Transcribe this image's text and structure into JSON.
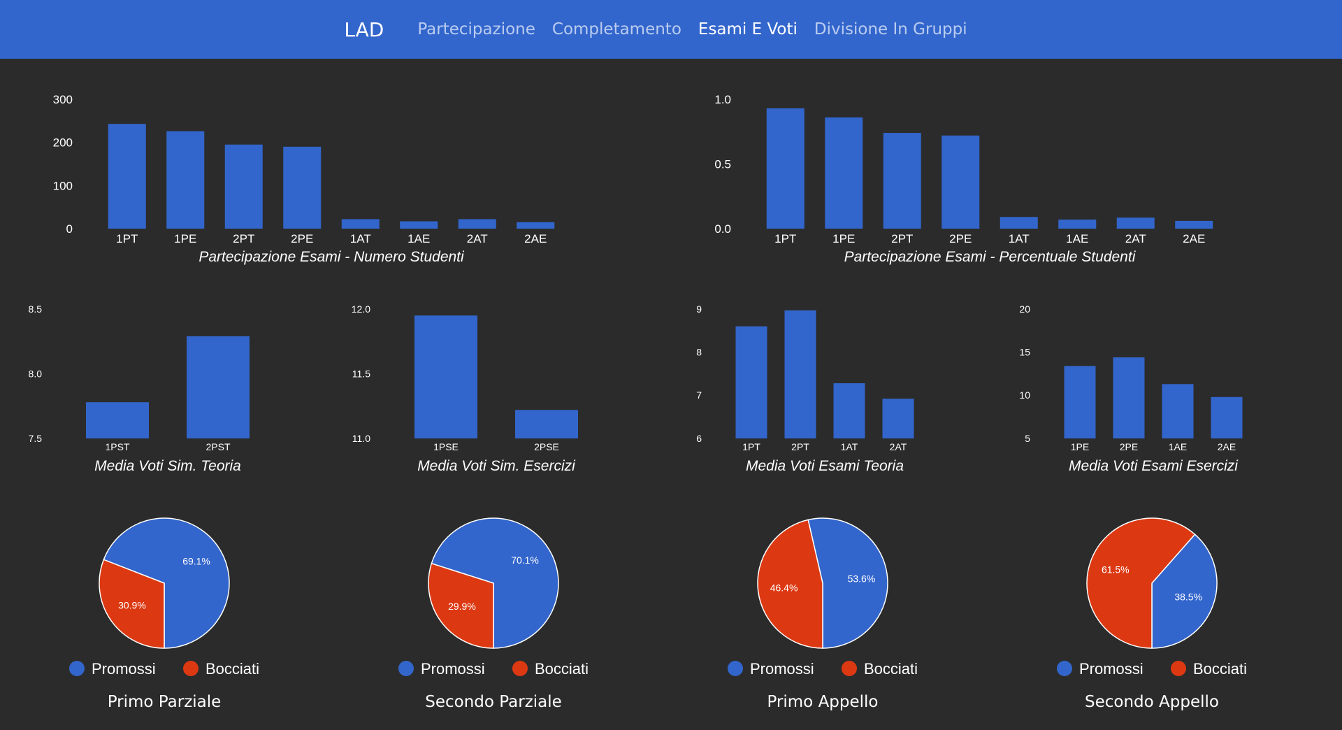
{
  "navbar": {
    "brand": "LAD",
    "links": [
      {
        "label": "Partecipazione",
        "active": false
      },
      {
        "label": "Completamento",
        "active": false
      },
      {
        "label": "Esami E Voti",
        "active": true
      },
      {
        "label": "Divisione In Gruppi",
        "active": false
      }
    ]
  },
  "colors": {
    "navbar_bg": "#3366cc",
    "page_bg": "#2b2b2b",
    "bar": "#3366cc",
    "promossi": "#3366cc",
    "bocciati": "#dc3912",
    "text": "#ffffff"
  },
  "chart_data": [
    {
      "id": "partecipazione-numero",
      "type": "bar",
      "title": "Partecipazione Esami - Numero Studenti",
      "categories": [
        "1PT",
        "1PE",
        "2PT",
        "2PE",
        "1AT",
        "1AE",
        "2AT",
        "2AE"
      ],
      "values": [
        243,
        226,
        195,
        190,
        22,
        17,
        22,
        15
      ],
      "ylim": [
        0,
        300
      ],
      "yticks": [
        "0",
        "100",
        "200",
        "300"
      ],
      "grid": false
    },
    {
      "id": "partecipazione-percentuale",
      "type": "bar",
      "title": "Partecipazione Esami - Percentuale Studenti",
      "categories": [
        "1PT",
        "1PE",
        "2PT",
        "2PE",
        "1AT",
        "1AE",
        "2AT",
        "2AE"
      ],
      "values": [
        0.93,
        0.86,
        0.74,
        0.72,
        0.09,
        0.07,
        0.085,
        0.06
      ],
      "ylim": [
        0,
        1
      ],
      "yticks": [
        "0.0",
        "0.5",
        "1.0"
      ],
      "grid": false
    },
    {
      "id": "media-sim-teoria",
      "type": "bar",
      "title": "Media Voti Sim. Teoria",
      "categories": [
        "1PST",
        "2PST"
      ],
      "values": [
        7.78,
        8.29
      ],
      "ylim": [
        7.5,
        8.5
      ],
      "yticks": [
        "7.5",
        "8.0",
        "8.5"
      ],
      "grid": false
    },
    {
      "id": "media-sim-esercizi",
      "type": "bar",
      "title": "Media Voti Sim. Esercizi",
      "categories": [
        "1PSE",
        "2PSE"
      ],
      "values": [
        11.95,
        11.22
      ],
      "ylim": [
        11.0,
        12.0
      ],
      "yticks": [
        "11.0",
        "11.5",
        "12.0"
      ],
      "grid": false
    },
    {
      "id": "media-esami-teoria",
      "type": "bar",
      "title": "Media Voti Esami Teoria",
      "categories": [
        "1PT",
        "2PT",
        "1AT",
        "2AT"
      ],
      "values": [
        8.6,
        8.97,
        7.28,
        6.92
      ],
      "ylim": [
        6,
        9
      ],
      "yticks": [
        "6",
        "7",
        "8",
        "9"
      ],
      "grid": false
    },
    {
      "id": "media-esami-esercizi",
      "type": "bar",
      "title": "Media Voti Esami Esercizi",
      "categories": [
        "1PE",
        "2PE",
        "1AE",
        "2AE"
      ],
      "values": [
        13.4,
        14.4,
        11.3,
        9.8
      ],
      "ylim": [
        5,
        20
      ],
      "yticks": [
        "5",
        "10",
        "15",
        "20"
      ],
      "grid": false
    },
    {
      "id": "primo-parziale",
      "type": "pie",
      "title": "Primo Parziale",
      "labels": [
        "Promossi",
        "Bocciati"
      ],
      "values": [
        69.1,
        30.9
      ],
      "value_labels": [
        "69.1%",
        "30.9%"
      ],
      "legend": "bottom"
    },
    {
      "id": "secondo-parziale",
      "type": "pie",
      "title": "Secondo Parziale",
      "labels": [
        "Promossi",
        "Bocciati"
      ],
      "values": [
        70.1,
        29.9
      ],
      "value_labels": [
        "70.1%",
        "29.9%"
      ],
      "legend": "bottom"
    },
    {
      "id": "primo-appello",
      "type": "pie",
      "title": "Primo Appello",
      "labels": [
        "Promossi",
        "Bocciati"
      ],
      "values": [
        53.6,
        46.4
      ],
      "value_labels": [
        "53.6%",
        "46.4%"
      ],
      "legend": "bottom"
    },
    {
      "id": "secondo-appello",
      "type": "pie",
      "title": "Secondo Appello",
      "labels": [
        "Promossi",
        "Bocciati"
      ],
      "values": [
        38.5,
        61.5
      ],
      "value_labels": [
        "38.5%",
        "61.5%"
      ],
      "legend": "bottom"
    }
  ]
}
